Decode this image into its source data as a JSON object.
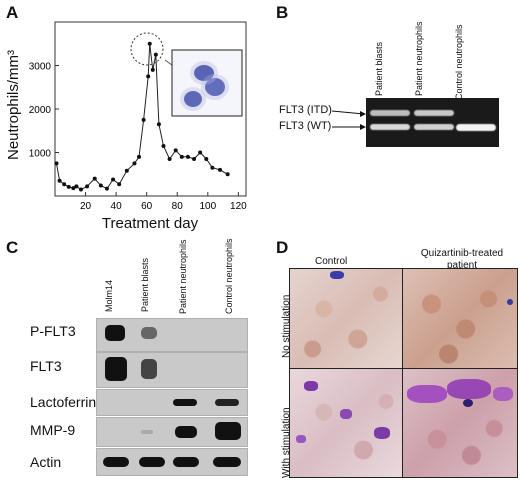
{
  "panels": {
    "a": {
      "letter": "A",
      "inset_description_hidden": "",
      "chart_data": {
        "type": "line",
        "xlabel": "Treatment day",
        "ylabel": "Neutrophils/mm³",
        "xlim": [
          0,
          125
        ],
        "ylim": [
          0,
          4000
        ],
        "xticks": [
          20,
          40,
          60,
          80,
          100,
          120
        ],
        "yticks": [
          1000,
          2000,
          3000
        ],
        "series": [
          {
            "x": [
              1,
              3,
              6,
              9,
              12,
              14,
              17,
              21,
              26,
              30,
              34,
              38,
              42,
              47,
              52,
              55,
              58,
              61,
              62,
              64,
              66,
              68,
              71,
              75,
              79,
              83,
              87,
              91,
              95,
              99,
              103,
              108,
              113
            ],
            "y": [
              750,
              350,
              270,
              210,
              180,
              220,
              150,
              220,
              400,
              240,
              170,
              380,
              270,
              580,
              750,
              900,
              1750,
              2750,
              3500,
              2900,
              3250,
              1650,
              1150,
              850,
              1050,
              900,
              900,
              850,
              1000,
              850,
              650,
              600,
              500
            ]
          }
        ]
      }
    },
    "b": {
      "letter": "B",
      "lanes": [
        "Patient blasts",
        "Patient neutrophils",
        "Control neutrophils"
      ],
      "bands": [
        "FLT3 (ITD)",
        "FLT3 (WT)"
      ]
    },
    "c": {
      "letter": "C",
      "lanes": [
        "Molm14",
        "Patient blasts",
        "Patient neutrophils",
        "Control neutrophils"
      ],
      "rows": [
        "P-FLT3",
        "FLT3",
        "Lactoferrin",
        "MMP-9",
        "Actin"
      ]
    },
    "d": {
      "letter": "D",
      "col_headers": [
        "Control",
        "Quizartinib-treated patient"
      ],
      "row_headers": [
        "No stimulation",
        "With stimulation"
      ]
    }
  }
}
